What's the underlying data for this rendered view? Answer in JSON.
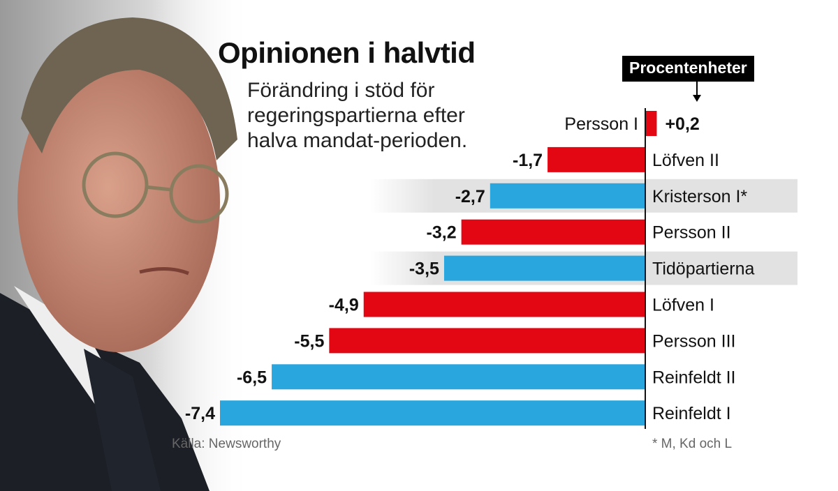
{
  "title": "Opinionen i halvtid",
  "subtitle": "Förändring i stöd för regeringspartierna efter halva mandat-perioden.",
  "unit_label": "Procentenheter",
  "source": "Källa: Newsworthy",
  "footnote": "* M, Kd och L",
  "colors": {
    "red": "#e30613",
    "blue": "#2aa6de",
    "highlight": "#e2e2e2"
  },
  "chart_data": {
    "type": "bar",
    "orientation": "horizontal",
    "title": "Opinionen i halvtid",
    "xlabel": "Procentenheter",
    "xlim": [
      -7.4,
      0.2
    ],
    "grid": false,
    "categories": [
      "Persson I",
      "Löfven II",
      "Kristerson I*",
      "Persson II",
      "Tidöpartierna",
      "Löfven I",
      "Persson III",
      "Reinfeldt II",
      "Reinfeldt I"
    ],
    "values": [
      0.2,
      -1.7,
      -2.7,
      -3.2,
      -3.5,
      -4.9,
      -5.5,
      -6.5,
      -7.4
    ],
    "value_labels": [
      "+0,2",
      "-1,7",
      "-2,7",
      "-3,2",
      "-3,5",
      "-4,9",
      "-5,5",
      "-6,5",
      "-7,4"
    ],
    "bar_colors": [
      "red",
      "red",
      "blue",
      "red",
      "blue",
      "red",
      "red",
      "blue",
      "blue"
    ],
    "highlighted": [
      false,
      false,
      true,
      false,
      true,
      false,
      false,
      false,
      false
    ]
  }
}
